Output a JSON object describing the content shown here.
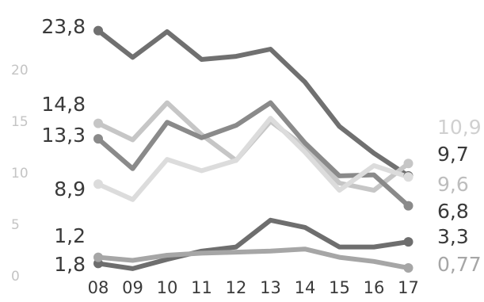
{
  "chart_data": {
    "type": "line",
    "title": "",
    "xlabel": "",
    "ylabel": "",
    "categories": [
      "08",
      "09",
      "10",
      "11",
      "12",
      "13",
      "14",
      "15",
      "16",
      "17"
    ],
    "y_ticks": [
      "0",
      "5",
      "10",
      "15",
      "20"
    ],
    "ylim": [
      0,
      25
    ],
    "grid": false,
    "legend": "none",
    "series": [
      {
        "color": "#707070",
        "values": [
          23.8,
          21.2,
          23.7,
          21.0,
          21.3,
          22.0,
          18.8,
          14.5,
          11.9,
          9.7
        ],
        "start_label": "23,8",
        "end_label": "9,7",
        "start_label_color": "#3a3a3a",
        "end_label_color": "#3a3a3a"
      },
      {
        "color": "#c6c6c6",
        "values": [
          14.8,
          13.2,
          16.8,
          13.7,
          11.2,
          15.0,
          12.5,
          9.0,
          8.3,
          10.9
        ],
        "start_label": "14,8",
        "end_label": "10,9",
        "start_label_color": "#3a3a3a",
        "end_label_color": "#d0d0d0"
      },
      {
        "color": "#8a8a8a",
        "values": [
          13.3,
          10.4,
          14.9,
          13.4,
          14.6,
          16.8,
          12.9,
          9.7,
          9.8,
          6.8
        ],
        "start_label": "13,3",
        "end_label": "6,8",
        "start_label_color": "#3a3a3a",
        "end_label_color": "#3a3a3a"
      },
      {
        "color": "#dcdcdc",
        "values": [
          8.9,
          7.4,
          11.3,
          10.2,
          11.2,
          15.3,
          12.0,
          8.3,
          10.7,
          9.6
        ],
        "start_label": "8,9",
        "end_label": "9,6",
        "start_label_color": "#3a3a3a",
        "end_label_color": "#bdbdbd"
      },
      {
        "color": "#6e6e6e",
        "values": [
          1.2,
          0.7,
          1.6,
          2.4,
          2.8,
          5.4,
          4.7,
          2.8,
          2.8,
          3.3
        ],
        "start_label": "1,2",
        "end_label": "3,3",
        "start_label_color": "#3a3a3a",
        "end_label_color": "#3a3a3a"
      },
      {
        "color": "#a6a6a6",
        "values": [
          1.8,
          1.5,
          2.0,
          2.2,
          2.3,
          2.4,
          2.6,
          1.8,
          1.4,
          0.77
        ],
        "start_label": "1,8",
        "end_label": "0,77",
        "start_label_color": "#3a3a3a",
        "end_label_color": "#a6a6a6"
      }
    ]
  }
}
